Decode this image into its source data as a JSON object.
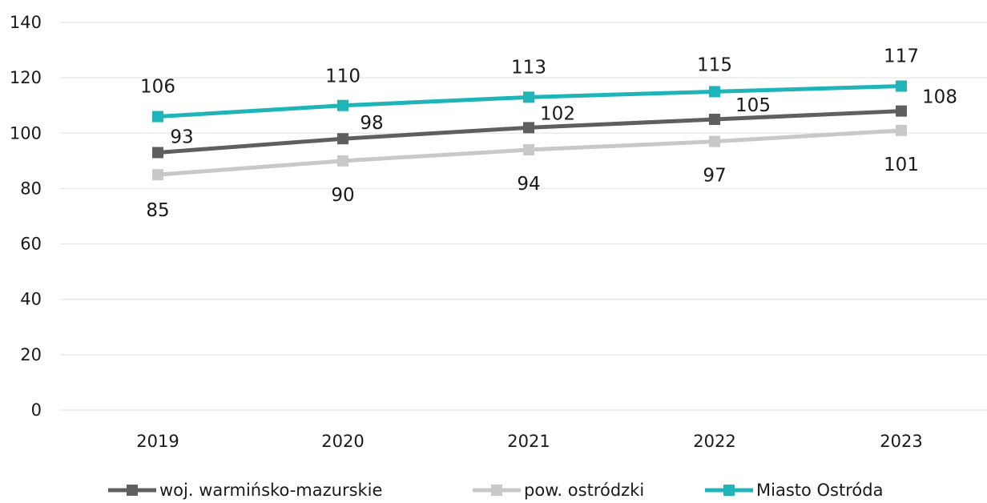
{
  "chart_data": {
    "type": "line",
    "title": "",
    "xlabel": "",
    "ylabel": "",
    "categories": [
      "2019",
      "2020",
      "2021",
      "2022",
      "2023"
    ],
    "ylim": [
      0,
      140
    ],
    "yticks": [
      0,
      20,
      40,
      60,
      80,
      100,
      120,
      140
    ],
    "grid": true,
    "legend_position": "bottom",
    "series": [
      {
        "name": "woj. warmińsko-mazurskie",
        "values": [
          93,
          98,
          102,
          105,
          108
        ],
        "color": "#5f5f5f",
        "marker": "square"
      },
      {
        "name": "pow. ostródzki",
        "values": [
          85,
          90,
          94,
          97,
          101
        ],
        "color": "#c8c8c8",
        "marker": "square"
      },
      {
        "name": "Miasto Ostróda",
        "values": [
          106,
          110,
          113,
          115,
          117
        ],
        "color": "#1fb5b8",
        "marker": "square"
      }
    ]
  }
}
